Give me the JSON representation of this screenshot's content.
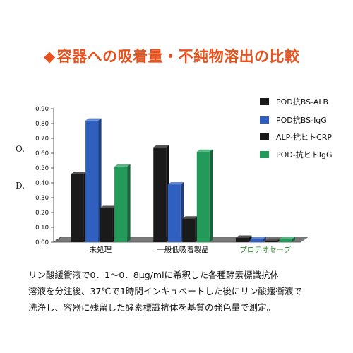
{
  "heading": {
    "bullet": "◆",
    "text": "容器への吸着量・不純物溶出の比較",
    "color": "#e8521e"
  },
  "y_letters": [
    "O.",
    "D."
  ],
  "chart_data": {
    "type": "bar",
    "categories": [
      "未処理",
      "一般低吸着製品",
      "プロテオセーブ"
    ],
    "category_colors": [
      "#111111",
      "#111111",
      "#2e8b2e"
    ],
    "ylim": [
      0,
      0.9
    ],
    "yticks": [
      "0.00",
      "0.10",
      "0.20",
      "0.30",
      "0.40",
      "0.50",
      "0.60",
      "0.70",
      "0.80",
      "0.90"
    ],
    "series": [
      {
        "name": "POD抗BS-ALB",
        "color": "#1a1a1a",
        "values": [
          0.46,
          0.64,
          0.03
        ]
      },
      {
        "name": "POD抗BS-IgG",
        "color": "#2f5fbf",
        "values": [
          0.82,
          0.39,
          0.02
        ]
      },
      {
        "name": "ALP-抗ヒトCRP",
        "color": "#1a1a1a",
        "values": [
          0.23,
          0.16,
          0.01
        ]
      },
      {
        "name": "POD-抗ヒトIgG",
        "color": "#239a5a",
        "values": [
          0.51,
          0.61,
          0.02
        ]
      }
    ]
  },
  "notes": [
    "リン酸緩衝液で0．1～0．8μg/mlに希釈した各種酵素標識抗体",
    "溶液を分注後、37℃で1時間インキュベートした後にリン酸緩衝液で",
    "洗浄し、容器に残留した酵素標識抗体を基質の発色量で測定。"
  ]
}
